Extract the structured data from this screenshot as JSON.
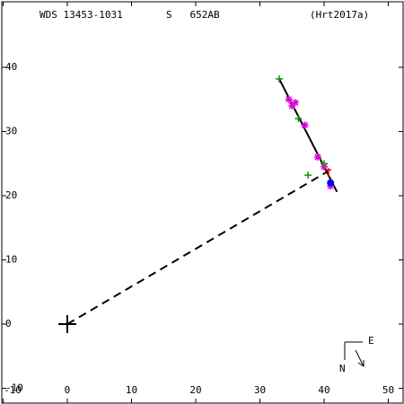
{
  "chart_data": {
    "type": "scatter",
    "title": "WDS 13453-1031",
    "subtitle": "S   652AB",
    "reference": "(Hrt2017a)",
    "xlim": [
      -10.2,
      52.3
    ],
    "ylim": [
      -12.3,
      50.2
    ],
    "xticks": [
      -10,
      0,
      10,
      20,
      30,
      40,
      50
    ],
    "yticks": [
      -10,
      0,
      10,
      20,
      30,
      40
    ],
    "primary": {
      "x": 0,
      "y": 0
    },
    "orbit": {
      "color": "#000000",
      "x": [
        33.0,
        42.0
      ],
      "y": [
        38.2,
        20.6
      ]
    },
    "node_line": {
      "color": "#000000",
      "x": [
        0,
        40.6
      ],
      "y": [
        0,
        23.8
      ]
    },
    "series": [
      {
        "marker": "asterisk",
        "color": "#e000e0",
        "x": [
          34.5,
          35.0,
          35.5,
          37.0,
          39.0,
          40.0,
          41.0
        ],
        "y": [
          35.0,
          34.0,
          34.5,
          31.0,
          26.0,
          24.5,
          21.5
        ]
      },
      {
        "marker": "plus",
        "color": "#00a000",
        "x": [
          33.0,
          36.0,
          37.5,
          40.0
        ],
        "y": [
          38.2,
          32.0,
          23.2,
          25.0
        ]
      },
      {
        "marker": "dot",
        "color": "#0000ff",
        "x": [
          41.0
        ],
        "y": [
          22.0
        ]
      },
      {
        "marker": "tick",
        "color": "#ff0000",
        "x": [
          40.7
        ],
        "y": [
          23.6
        ]
      }
    ],
    "compass": {
      "east": "E",
      "north": "N"
    }
  }
}
